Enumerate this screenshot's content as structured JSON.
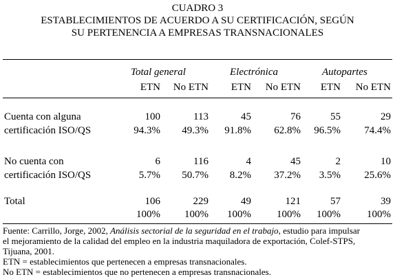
{
  "title": {
    "line1": "CUADRO 3",
    "line2": "ESTABLECIMIENTOS DE ACUERDO A SU CERTIFICACIÓN, SEGÚN",
    "line3": "SU PERTENENCIA A EMPRESAS TRANSNACIONALES"
  },
  "groups": [
    "Total general",
    "Electrónica",
    "Autopartes"
  ],
  "subheaders": [
    "ETN",
    "No ETN",
    "ETN",
    "No ETN",
    "ETN",
    "No ETN"
  ],
  "rows": [
    {
      "label": [
        "Cuenta con alguna",
        "certificación ISO/QS"
      ],
      "counts": [
        "100",
        "113",
        "45",
        "76",
        "55",
        "29"
      ],
      "percents": [
        "94.3%",
        "49.3%",
        "91.8%",
        "62.8%",
        "96.5%",
        "74.4%"
      ]
    },
    {
      "label": [
        "No cuenta con",
        "certificación ISO/QS"
      ],
      "counts": [
        "6",
        "116",
        "4",
        "45",
        "2",
        "10"
      ],
      "percents": [
        "5.7%",
        "50.7%",
        "8.2%",
        "37.2%",
        "3.5%",
        "25.6%"
      ]
    },
    {
      "label": [
        "Total",
        ""
      ],
      "counts": [
        "106",
        "229",
        "49",
        "121",
        "57",
        "39"
      ],
      "percents": [
        "100%",
        "100%",
        "100%",
        "100%",
        "100%",
        "100%"
      ]
    }
  ],
  "source": {
    "prefix": "Fuente: Carrillo, Jorge, 2002, ",
    "italic": "Análisis sectorial de la seguridad en el trabajo",
    "suffix": ", estudio para impulsar",
    "line2": "el mejoramiento de la calidad del empleo en la industria maquiladora de exportación, Colef-STPS,",
    "line3": "Tijuana, 2001.",
    "note1": "ETN = establecimientos que pertenecen a empresas transnacionales.",
    "note2": "No ETN = establecimientos que no pertenecen a empresas transnacionales."
  }
}
